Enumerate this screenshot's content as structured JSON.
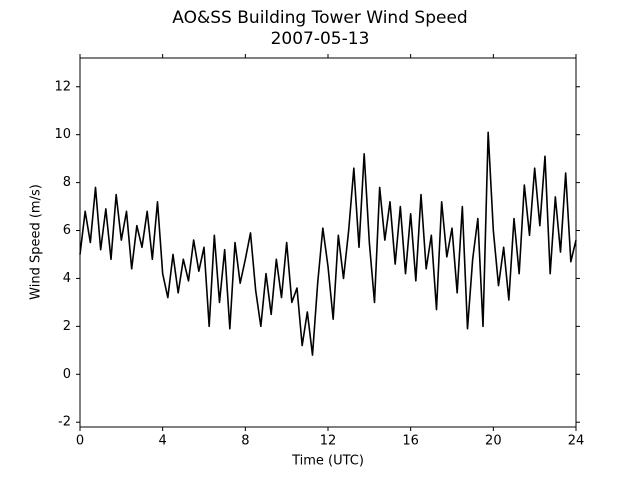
{
  "chart_data": {
    "type": "line",
    "title": "AO&SS Building Tower Wind Speed",
    "subtitle": "2007-05-13",
    "x_label": "Time (UTC)",
    "y_label": "Wind Speed (m/s)",
    "x": [
      0,
      0.25,
      0.5,
      0.75,
      1,
      1.25,
      1.5,
      1.75,
      2,
      2.25,
      2.5,
      2.75,
      3,
      3.25,
      3.5,
      3.75,
      4,
      4.25,
      4.5,
      4.75,
      5,
      5.25,
      5.5,
      5.75,
      6,
      6.25,
      6.5,
      6.75,
      7,
      7.25,
      7.5,
      7.75,
      8,
      8.25,
      8.5,
      8.75,
      9,
      9.25,
      9.5,
      9.75,
      10,
      10.25,
      10.5,
      10.75,
      11,
      11.25,
      11.5,
      11.75,
      12,
      12.25,
      12.5,
      12.75,
      13,
      13.25,
      13.5,
      13.75,
      14,
      14.25,
      14.5,
      14.75,
      15,
      15.25,
      15.5,
      15.75,
      16,
      16.25,
      16.5,
      16.75,
      17,
      17.25,
      17.5,
      17.75,
      18,
      18.25,
      18.5,
      18.75,
      19,
      19.25,
      19.5,
      19.75,
      20,
      20.25,
      20.5,
      20.75,
      21,
      21.25,
      21.5,
      21.75,
      22,
      22.25,
      22.5,
      22.75,
      23,
      23.25,
      23.5,
      23.75,
      24
    ],
    "series": [
      {
        "color": "#000000",
        "values": [
          5.0,
          6.8,
          5.5,
          7.8,
          5.2,
          6.9,
          4.8,
          7.5,
          5.6,
          6.8,
          4.4,
          6.2,
          5.3,
          6.8,
          4.8,
          7.2,
          4.2,
          3.2,
          5.0,
          3.4,
          4.8,
          3.9,
          5.6,
          4.3,
          5.3,
          2.0,
          5.8,
          3.0,
          5.2,
          1.9,
          5.5,
          3.8,
          4.8,
          5.9,
          3.5,
          2.0,
          4.2,
          2.5,
          4.8,
          3.2,
          5.5,
          3.0,
          3.6,
          1.2,
          2.6,
          0.8,
          3.8,
          6.1,
          4.5,
          2.3,
          5.8,
          4.0,
          6.0,
          8.6,
          5.3,
          9.2,
          5.5,
          3.0,
          7.8,
          5.6,
          7.2,
          4.6,
          7.0,
          4.2,
          6.7,
          3.9,
          7.5,
          4.4,
          5.8,
          2.7,
          7.2,
          4.9,
          6.1,
          3.4,
          7.0,
          1.9,
          4.8,
          6.5,
          2.0,
          10.1,
          6.0,
          3.7,
          5.3,
          3.1,
          6.5,
          4.2,
          7.9,
          5.8,
          8.6,
          6.2,
          9.1,
          4.2,
          7.4,
          5.1,
          8.4,
          4.7,
          5.6
        ]
      }
    ],
    "xlim": [
      0,
      24
    ],
    "xticks": [
      0,
      4,
      8,
      12,
      16,
      20,
      24
    ],
    "ylim": [
      -2.2,
      13.2
    ],
    "yticks": [
      -2,
      0,
      2,
      4,
      6,
      8,
      10,
      12
    ]
  }
}
